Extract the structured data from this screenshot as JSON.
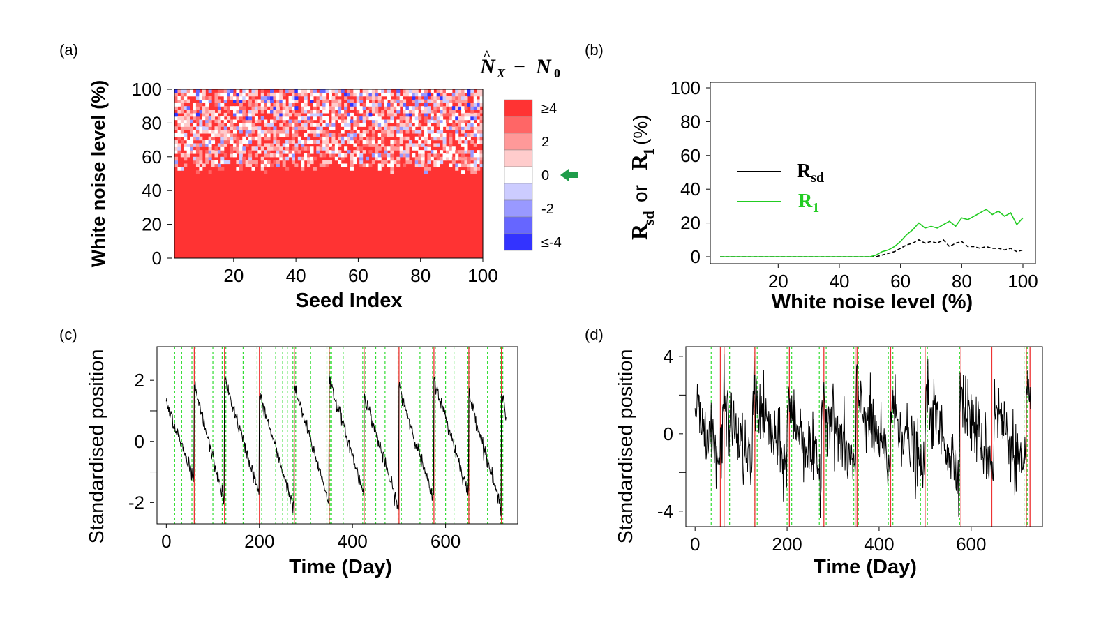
{
  "chart_data": [
    {
      "panel": "(a)",
      "type": "heatmap",
      "xlabel": "Seed Index",
      "ylabel": "White noise level (%)",
      "xlim": [
        1,
        100
      ],
      "ylim": [
        0,
        100
      ],
      "xticks": [
        "20",
        "40",
        "60",
        "80",
        "100"
      ],
      "yticks": [
        "0",
        "20",
        "40",
        "60",
        "80",
        "100"
      ],
      "legend_title": "N̂X − N0",
      "legend_labels": [
        "≥4",
        "2",
        "0",
        "-2",
        "≤-4"
      ],
      "legend_colors": [
        "#FF3333",
        "#FF6666",
        "#FF9999",
        "#FFCCCC",
        "#FFFFFF",
        "#CCCCFF",
        "#9999FF",
        "#6666FF",
        "#3333FF"
      ],
      "legend_marker": "green arrow at 0",
      "description": "Difference between estimated and true number of change points; uniformly >=4 (red) below ~50% noise, mixed red/white/blue above ~55%"
    },
    {
      "panel": "(b)",
      "type": "line",
      "xlabel": "White noise level (%)",
      "ylabel": "Rsd or R1 (%)",
      "xlim": [
        1,
        100
      ],
      "ylim": [
        0,
        100
      ],
      "xticks": [
        "20",
        "40",
        "60",
        "80",
        "100"
      ],
      "yticks": [
        "0",
        "20",
        "40",
        "60",
        "80",
        "100"
      ],
      "series": [
        {
          "name": "Rsd",
          "color": "#000000",
          "style": "dashed",
          "x": [
            1,
            10,
            20,
            30,
            40,
            50,
            52,
            54,
            56,
            58,
            60,
            62,
            64,
            66,
            68,
            70,
            72,
            74,
            76,
            78,
            80,
            82,
            84,
            86,
            88,
            90,
            92,
            94,
            96,
            98,
            100
          ],
          "values": [
            0,
            0,
            0,
            0,
            0,
            0,
            0,
            1,
            2,
            3,
            5,
            7,
            8,
            10,
            8,
            9,
            8,
            10,
            6,
            8,
            9,
            6,
            6,
            5,
            6,
            5,
            5,
            4,
            5,
            3,
            4
          ]
        },
        {
          "name": "R1",
          "color": "#22CC22",
          "style": "solid",
          "x": [
            1,
            10,
            20,
            30,
            40,
            50,
            52,
            54,
            56,
            58,
            60,
            62,
            64,
            66,
            68,
            70,
            72,
            74,
            76,
            78,
            80,
            82,
            84,
            86,
            88,
            90,
            92,
            94,
            96,
            98,
            100
          ],
          "values": [
            0,
            0,
            0,
            0,
            0,
            0,
            1,
            3,
            4,
            6,
            9,
            13,
            16,
            20,
            17,
            18,
            17,
            19,
            21,
            18,
            23,
            22,
            24,
            26,
            28,
            25,
            27,
            24,
            26,
            19,
            23
          ]
        }
      ],
      "legend": [
        "Rsd",
        "R1"
      ]
    },
    {
      "panel": "(c)",
      "type": "line",
      "xlabel": "Time (Day)",
      "ylabel": "Standardised position",
      "xlim": [
        -20,
        755
      ],
      "ylim": [
        -2.7,
        3.1
      ],
      "xticks": [
        0,
        200,
        400,
        600
      ],
      "yticks": [
        -2,
        0,
        2
      ],
      "series_shape": "sawtooth, linear decline from ~+1.7 to ~-2.2 then jump, low noise",
      "cycle_starts": [
        0,
        60,
        125,
        200,
        275,
        350,
        425,
        500,
        575,
        650,
        720
      ],
      "red_lines": [
        60,
        125,
        200,
        275,
        350,
        425,
        500,
        575,
        650,
        720
      ],
      "green_lines": [
        18,
        33,
        55,
        62,
        100,
        120,
        128,
        165,
        195,
        205,
        235,
        250,
        260,
        272,
        278,
        310,
        345,
        352,
        355,
        380,
        422,
        428,
        450,
        470,
        498,
        505,
        545,
        572,
        578,
        600,
        618,
        648,
        652,
        690,
        718,
        723
      ]
    },
    {
      "panel": "(d)",
      "type": "line",
      "xlabel": "Time (Day)",
      "ylabel": "Standardised position",
      "xlim": [
        -20,
        755
      ],
      "ylim": [
        -4.8,
        4.5
      ],
      "xticks": [
        0,
        200,
        400,
        600
      ],
      "yticks": [
        -4,
        0,
        4
      ],
      "series_shape": "noisy sawtooth, amplitude ~2, high noise",
      "cycle_starts": [
        0,
        60,
        125,
        200,
        275,
        350,
        425,
        500,
        575,
        650,
        720
      ],
      "red_lines": [
        55,
        63,
        130,
        205,
        280,
        348,
        352,
        425,
        500,
        578,
        645,
        720,
        728
      ],
      "green_lines": [
        35,
        75,
        128,
        135,
        200,
        210,
        270,
        285,
        345,
        355,
        420,
        430,
        490,
        505,
        575,
        715,
        722
      ]
    }
  ],
  "panel_labels": [
    "(a)",
    "(b)",
    "(c)",
    "(d)"
  ]
}
